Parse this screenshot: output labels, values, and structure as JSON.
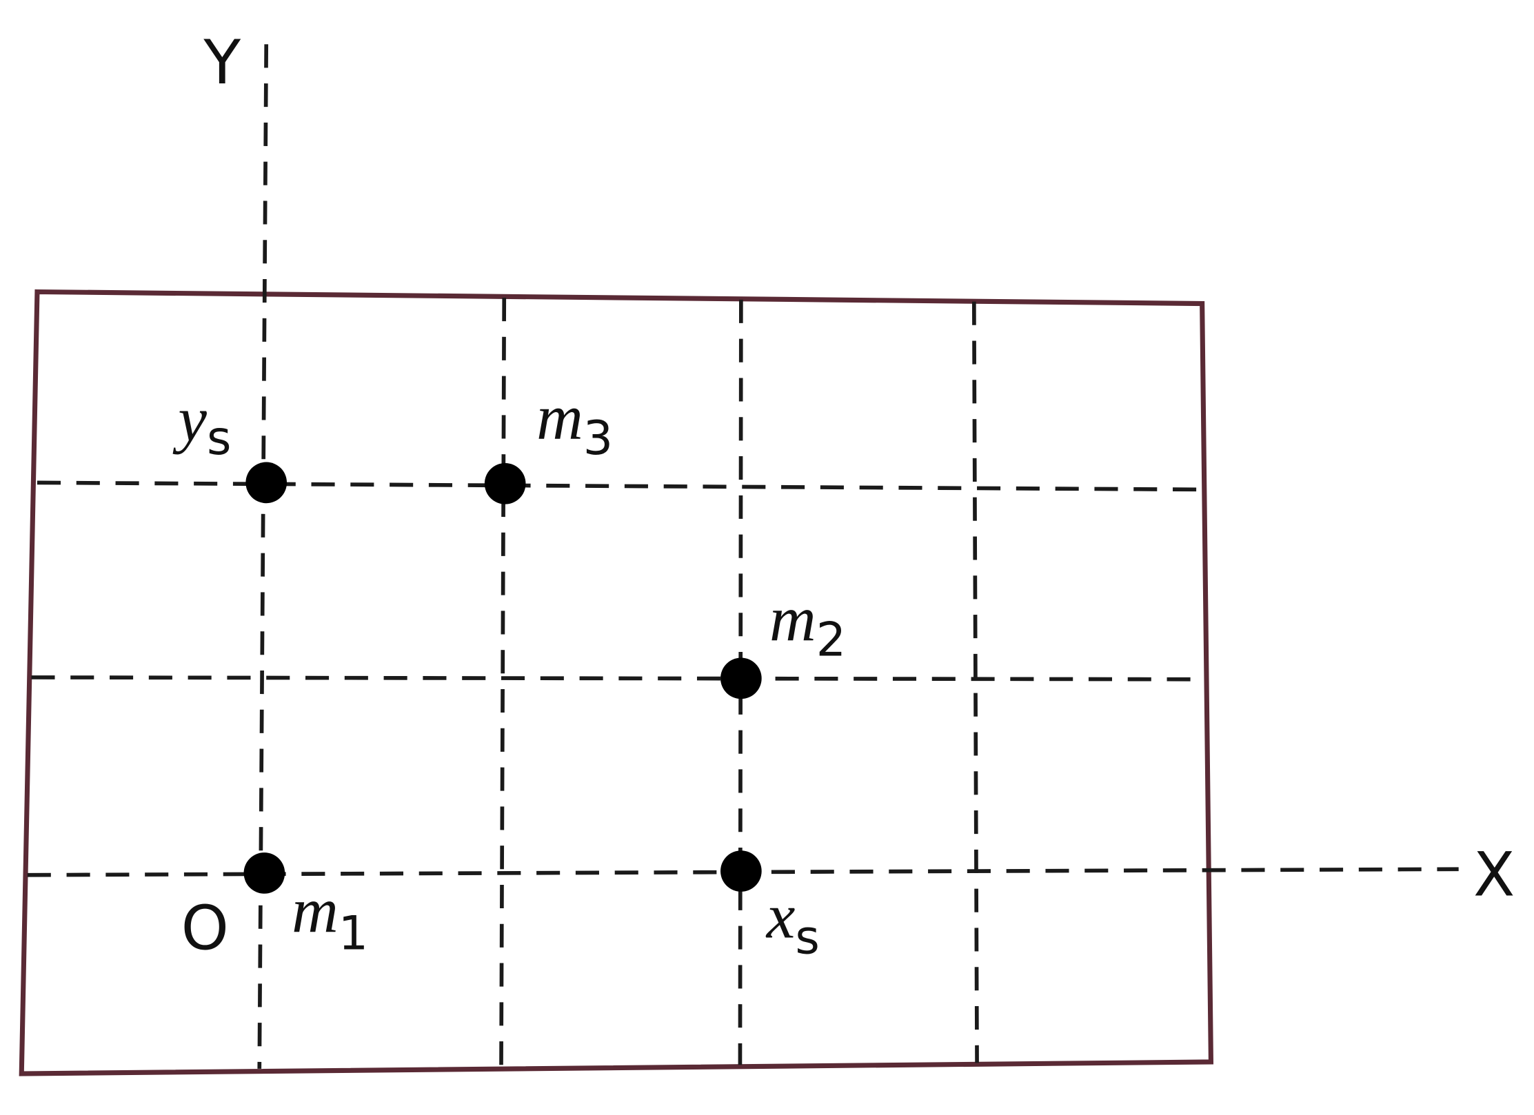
{
  "axes": {
    "y": "Y",
    "x": "X",
    "origin": "O"
  },
  "labels": {
    "m1": {
      "base": "m",
      "sub": "1"
    },
    "m2": {
      "base": "m",
      "sub": "2"
    },
    "m3": {
      "base": "m",
      "sub": "3"
    },
    "ys": {
      "base": "y",
      "sub": "s"
    },
    "xs": {
      "base": "x",
      "sub": "s"
    }
  }
}
